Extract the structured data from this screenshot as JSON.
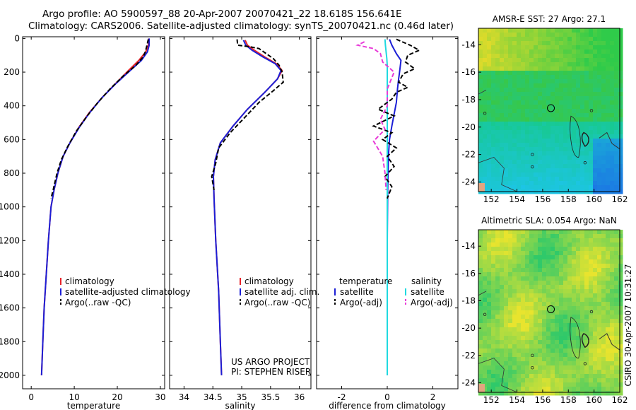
{
  "header": {
    "line1": "Argo profile: AO 5900597_88 20-Apr-2007 20070421_22 18.618S 156.641E",
    "line2": "Climatology: CARS2006. Satellite-adjusted climatology: synTS_20070421.nc (0.46d later)"
  },
  "colors": {
    "climatology": "#e8232a",
    "satellite": "#1c1fd6",
    "argo": "#000000",
    "cyan": "#1fd9e0",
    "magenta": "#e83ad8"
  },
  "chart_data": [
    {
      "id": "temperature",
      "type": "line",
      "xlabel": "temperature",
      "ylabel": "",
      "xlim": [
        -2,
        31
      ],
      "ylim": [
        2080,
        -10
      ],
      "xticks": [
        0,
        10,
        20,
        30
      ],
      "yticks": [
        0,
        200,
        400,
        600,
        800,
        1000,
        1200,
        1400,
        1600,
        1800,
        2000
      ],
      "legend": [
        "climatology",
        "satellite-adjusted climatology",
        "Argo(..raw -QC)"
      ],
      "series": [
        {
          "name": "climatology",
          "color": "#e8232a",
          "style": "solid",
          "points": [
            [
              27.3,
              0
            ],
            [
              27.2,
              40
            ],
            [
              26.6,
              80
            ],
            [
              25.0,
              130
            ],
            [
              22.6,
              190
            ],
            [
              19.5,
              270
            ],
            [
              16.5,
              350
            ],
            [
              13.5,
              440
            ],
            [
              11.0,
              530
            ],
            [
              9.0,
              620
            ],
            [
              7.4,
              700
            ],
            [
              6.2,
              800
            ],
            [
              5.3,
              900
            ],
            [
              4.6,
              1000
            ],
            [
              4.0,
              1200
            ],
            [
              3.5,
              1400
            ],
            [
              3.0,
              1600
            ],
            [
              2.7,
              1800
            ],
            [
              2.4,
              2000
            ]
          ]
        },
        {
          "name": "satellite-adjusted climatology",
          "color": "#1c1fd6",
          "style": "solid",
          "points": [
            [
              27.4,
              0
            ],
            [
              27.4,
              40
            ],
            [
              27.0,
              80
            ],
            [
              25.6,
              130
            ],
            [
              23.0,
              190
            ],
            [
              19.6,
              270
            ],
            [
              16.5,
              350
            ],
            [
              13.6,
              440
            ],
            [
              11.1,
              530
            ],
            [
              9.0,
              620
            ],
            [
              7.4,
              700
            ],
            [
              6.2,
              800
            ],
            [
              5.3,
              900
            ],
            [
              4.6,
              1000
            ],
            [
              4.0,
              1200
            ],
            [
              3.5,
              1400
            ],
            [
              3.0,
              1600
            ],
            [
              2.7,
              1800
            ],
            [
              2.4,
              2000
            ]
          ]
        },
        {
          "name": "Argo(..raw -QC)",
          "color": "#000000",
          "style": "dashed",
          "points": [
            [
              27.2,
              5
            ],
            [
              26.9,
              40
            ],
            [
              26.5,
              80
            ],
            [
              26.0,
              110
            ],
            [
              24.3,
              160
            ],
            [
              21.5,
              220
            ],
            [
              18.3,
              300
            ],
            [
              15.5,
              380
            ],
            [
              13.0,
              460
            ],
            [
              10.5,
              550
            ],
            [
              8.5,
              640
            ],
            [
              7.0,
              720
            ],
            [
              6.0,
              800
            ],
            [
              5.1,
              900
            ],
            [
              4.6,
              950
            ]
          ]
        }
      ]
    },
    {
      "id": "salinity",
      "type": "line",
      "xlabel": "salinity",
      "xlim": [
        33.75,
        36.2
      ],
      "ylim": [
        2080,
        -10
      ],
      "xticks": [
        34,
        34.5,
        35,
        35.5,
        36
      ],
      "yticks": [],
      "legend": [
        "climatology",
        "satellite adj. clim.",
        "Argo(..raw -QC)"
      ],
      "series": [
        {
          "name": "climatology",
          "color": "#e8232a",
          "style": "solid",
          "points": [
            [
              35.06,
              10
            ],
            [
              35.1,
              40
            ],
            [
              35.22,
              70
            ],
            [
              35.4,
              110
            ],
            [
              35.6,
              150
            ],
            [
              35.7,
              190
            ],
            [
              35.62,
              240
            ],
            [
              35.4,
              320
            ],
            [
              35.1,
              420
            ],
            [
              34.85,
              520
            ],
            [
              34.63,
              620
            ],
            [
              34.54,
              720
            ],
            [
              34.51,
              820
            ],
            [
              34.52,
              950
            ],
            [
              34.55,
              1200
            ],
            [
              34.6,
              1500
            ],
            [
              34.63,
              1800
            ],
            [
              34.65,
              2000
            ]
          ]
        },
        {
          "name": "satellite adj. clim.",
          "color": "#1c1fd6",
          "style": "solid",
          "points": [
            [
              35.03,
              10
            ],
            [
              35.07,
              40
            ],
            [
              35.18,
              70
            ],
            [
              35.37,
              110
            ],
            [
              35.58,
              150
            ],
            [
              35.68,
              190
            ],
            [
              35.62,
              240
            ],
            [
              35.4,
              320
            ],
            [
              35.1,
              420
            ],
            [
              34.85,
              520
            ],
            [
              34.63,
              620
            ],
            [
              34.54,
              720
            ],
            [
              34.51,
              820
            ],
            [
              34.52,
              950
            ],
            [
              34.55,
              1200
            ],
            [
              34.6,
              1500
            ],
            [
              34.63,
              1800
            ],
            [
              34.65,
              2000
            ]
          ]
        },
        {
          "name": "Argo(..raw -QC)",
          "color": "#000000",
          "style": "dashed",
          "points": [
            [
              34.92,
              5
            ],
            [
              34.93,
              40
            ],
            [
              35.15,
              50
            ],
            [
              35.3,
              60
            ],
            [
              35.55,
              120
            ],
            [
              35.65,
              160
            ],
            [
              35.7,
              200
            ],
            [
              35.72,
              260
            ],
            [
              35.55,
              310
            ],
            [
              35.3,
              380
            ],
            [
              35.05,
              470
            ],
            [
              34.8,
              560
            ],
            [
              34.6,
              650
            ],
            [
              34.55,
              740
            ],
            [
              34.48,
              820
            ],
            [
              34.52,
              900
            ]
          ]
        }
      ]
    },
    {
      "id": "difference",
      "type": "line",
      "xlabel": "difference from climatology",
      "xlim": [
        -3.1,
        3.1
      ],
      "ylim": [
        2080,
        -10
      ],
      "xticks": [
        -2,
        0,
        2
      ],
      "yticks": [],
      "legend_left_title": "temperature",
      "legend_right_title": "salinity",
      "legend": [
        "satellite",
        "Argo(-adj)",
        "satellite",
        "Argo(-adj)"
      ],
      "series": [
        {
          "name": "temperature satellite",
          "color": "#1c1fd6",
          "style": "solid",
          "points": [
            [
              0.1,
              5
            ],
            [
              0.2,
              40
            ],
            [
              0.4,
              90
            ],
            [
              0.6,
              130
            ],
            [
              0.55,
              190
            ],
            [
              0.5,
              240
            ],
            [
              0.45,
              300
            ],
            [
              0.4,
              380
            ],
            [
              0.3,
              450
            ],
            [
              0.2,
              520
            ],
            [
              0.1,
              600
            ],
            [
              0.05,
              700
            ],
            [
              0.02,
              900
            ],
            [
              0.0,
              1200
            ],
            [
              0.0,
              1600
            ],
            [
              0.0,
              2000
            ]
          ]
        },
        {
          "name": "salinity satellite",
          "color": "#1fd9e0",
          "style": "solid",
          "points": [
            [
              -0.1,
              5
            ],
            [
              -0.08,
              40
            ],
            [
              -0.05,
              80
            ],
            [
              -0.02,
              120
            ],
            [
              0.0,
              160
            ],
            [
              0.0,
              2000
            ]
          ]
        },
        {
          "name": "temperature Argo(-adj)",
          "color": "#000000",
          "style": "dashed",
          "points": [
            [
              0.4,
              5
            ],
            [
              1.0,
              40
            ],
            [
              1.4,
              70
            ],
            [
              0.9,
              100
            ],
            [
              0.8,
              140
            ],
            [
              1.2,
              180
            ],
            [
              0.7,
              210
            ],
            [
              0.5,
              260
            ],
            [
              0.9,
              290
            ],
            [
              0.4,
              320
            ],
            [
              0.2,
              360
            ],
            [
              -0.4,
              420
            ],
            [
              0.3,
              460
            ],
            [
              -0.6,
              520
            ],
            [
              0.2,
              560
            ],
            [
              -0.2,
              600
            ],
            [
              0.4,
              650
            ],
            [
              0.0,
              700
            ],
            [
              0.3,
              760
            ],
            [
              -0.1,
              820
            ],
            [
              0.2,
              880
            ],
            [
              0.0,
              950
            ]
          ]
        },
        {
          "name": "salinity Argo(-adj)",
          "color": "#e83ad8",
          "style": "dashed",
          "points": [
            [
              -1.0,
              20
            ],
            [
              -1.3,
              40
            ],
            [
              -0.6,
              60
            ],
            [
              -0.3,
              90
            ],
            [
              -0.2,
              140
            ],
            [
              0.3,
              200
            ],
            [
              0.0,
              300
            ],
            [
              0.0,
              400
            ],
            [
              -0.3,
              480
            ],
            [
              -0.1,
              540
            ],
            [
              -0.6,
              610
            ],
            [
              -0.2,
              700
            ],
            [
              -0.1,
              800
            ],
            [
              -0.05,
              900
            ]
          ]
        }
      ]
    },
    {
      "id": "sst-map",
      "type": "heatmap",
      "title": "AMSR-E SST: 27  Argo: 27.1",
      "xlim": [
        151,
        162
      ],
      "ylim": [
        -24.7,
        -12.8
      ],
      "xticks": [
        152,
        154,
        156,
        158,
        160,
        162
      ],
      "yticks": [
        -14,
        -16,
        -18,
        -20,
        -22,
        -24
      ],
      "marker": {
        "lon": 156.64,
        "lat": -18.62
      }
    },
    {
      "id": "sla-map",
      "type": "heatmap",
      "title": "Altimetric SLA: 0.054  Argo: NaN",
      "xlim": [
        151,
        162
      ],
      "ylim": [
        -24.7,
        -12.8
      ],
      "xticks": [
        152,
        154,
        156,
        158,
        160,
        162
      ],
      "yticks": [
        -14,
        -16,
        -18,
        -20,
        -22,
        -24
      ],
      "marker": {
        "lon": 156.64,
        "lat": -18.62
      }
    }
  ],
  "annotations": {
    "project": "US ARGO PROJECT",
    "pi": "PI: STEPHEN RISER",
    "stamp": "CSIRO 30-Apr-2007 10:31:27"
  }
}
